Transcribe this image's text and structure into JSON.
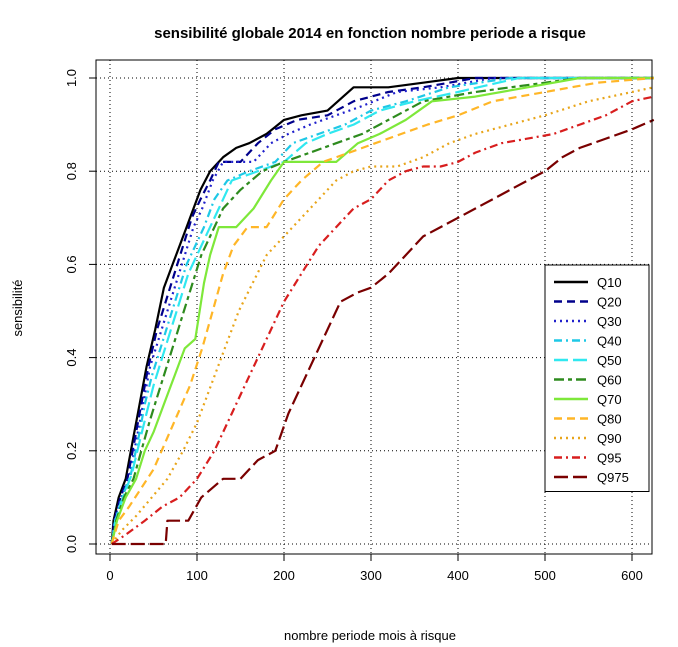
{
  "chart_data": {
    "type": "line",
    "title": "sensibilité globale 2014 en fonction nombre periode a risque",
    "xlabel": "nombre periode mois à risque",
    "ylabel": "sensibilité",
    "xlim": [
      0,
      625
    ],
    "ylim": [
      0,
      1.0
    ],
    "x_ticks": [
      0,
      100,
      200,
      300,
      400,
      500,
      600
    ],
    "y_ticks": [
      0.0,
      0.2,
      0.4,
      0.6,
      0.8,
      1.0
    ],
    "grid": true,
    "legend_position": "right",
    "series": [
      {
        "name": "Q10",
        "color": "#000000",
        "dash": "solid",
        "points": [
          [
            2,
            0
          ],
          [
            4,
            0.05
          ],
          [
            10,
            0.1
          ],
          [
            18,
            0.14
          ],
          [
            26,
            0.22
          ],
          [
            34,
            0.3
          ],
          [
            42,
            0.38
          ],
          [
            52,
            0.46
          ],
          [
            62,
            0.55
          ],
          [
            72,
            0.6
          ],
          [
            80,
            0.64
          ],
          [
            88,
            0.68
          ],
          [
            96,
            0.72
          ],
          [
            104,
            0.76
          ],
          [
            115,
            0.8
          ],
          [
            130,
            0.83
          ],
          [
            145,
            0.85
          ],
          [
            160,
            0.86
          ],
          [
            180,
            0.88
          ],
          [
            200,
            0.91
          ],
          [
            220,
            0.92
          ],
          [
            250,
            0.93
          ],
          [
            280,
            0.98
          ],
          [
            320,
            0.98
          ],
          [
            360,
            0.99
          ],
          [
            400,
            1.0
          ],
          [
            625,
            1.0
          ]
        ]
      },
      {
        "name": "Q20",
        "color": "#00008b",
        "dash": "dashed",
        "points": [
          [
            2,
            0
          ],
          [
            5,
            0.05
          ],
          [
            12,
            0.1
          ],
          [
            20,
            0.14
          ],
          [
            28,
            0.22
          ],
          [
            36,
            0.3
          ],
          [
            44,
            0.38
          ],
          [
            54,
            0.46
          ],
          [
            64,
            0.52
          ],
          [
            74,
            0.58
          ],
          [
            84,
            0.64
          ],
          [
            94,
            0.7
          ],
          [
            104,
            0.74
          ],
          [
            115,
            0.78
          ],
          [
            125,
            0.82
          ],
          [
            150,
            0.82
          ],
          [
            170,
            0.86
          ],
          [
            190,
            0.89
          ],
          [
            215,
            0.91
          ],
          [
            250,
            0.92
          ],
          [
            280,
            0.95
          ],
          [
            320,
            0.97
          ],
          [
            360,
            0.98
          ],
          [
            420,
            1.0
          ],
          [
            625,
            1.0
          ]
        ]
      },
      {
        "name": "Q30",
        "color": "#2020cc",
        "dash": "dotted",
        "points": [
          [
            2,
            0
          ],
          [
            5,
            0.05
          ],
          [
            13,
            0.1
          ],
          [
            22,
            0.14
          ],
          [
            30,
            0.22
          ],
          [
            38,
            0.3
          ],
          [
            46,
            0.38
          ],
          [
            56,
            0.44
          ],
          [
            66,
            0.5
          ],
          [
            76,
            0.56
          ],
          [
            86,
            0.62
          ],
          [
            96,
            0.68
          ],
          [
            106,
            0.72
          ],
          [
            118,
            0.78
          ],
          [
            130,
            0.82
          ],
          [
            165,
            0.82
          ],
          [
            185,
            0.86
          ],
          [
            205,
            0.88
          ],
          [
            230,
            0.9
          ],
          [
            260,
            0.92
          ],
          [
            290,
            0.94
          ],
          [
            330,
            0.97
          ],
          [
            380,
            0.98
          ],
          [
            440,
            1.0
          ],
          [
            625,
            1.0
          ]
        ]
      },
      {
        "name": "Q40",
        "color": "#1ec8e6",
        "dash": "dashdot",
        "points": [
          [
            2,
            0
          ],
          [
            6,
            0.05
          ],
          [
            14,
            0.1
          ],
          [
            24,
            0.15
          ],
          [
            32,
            0.22
          ],
          [
            40,
            0.3
          ],
          [
            48,
            0.36
          ],
          [
            58,
            0.42
          ],
          [
            68,
            0.48
          ],
          [
            78,
            0.54
          ],
          [
            88,
            0.6
          ],
          [
            98,
            0.64
          ],
          [
            108,
            0.68
          ],
          [
            120,
            0.74
          ],
          [
            135,
            0.78
          ],
          [
            160,
            0.8
          ],
          [
            190,
            0.82
          ],
          [
            210,
            0.86
          ],
          [
            240,
            0.88
          ],
          [
            270,
            0.9
          ],
          [
            300,
            0.93
          ],
          [
            340,
            0.95
          ],
          [
            390,
            0.98
          ],
          [
            460,
            1.0
          ],
          [
            625,
            1.0
          ]
        ]
      },
      {
        "name": "Q50",
        "color": "#30e8f0",
        "dash": "longdash",
        "points": [
          [
            2,
            0
          ],
          [
            6,
            0.05
          ],
          [
            15,
            0.1
          ],
          [
            25,
            0.15
          ],
          [
            34,
            0.22
          ],
          [
            42,
            0.28
          ],
          [
            50,
            0.34
          ],
          [
            60,
            0.4
          ],
          [
            70,
            0.46
          ],
          [
            80,
            0.52
          ],
          [
            90,
            0.58
          ],
          [
            100,
            0.62
          ],
          [
            110,
            0.66
          ],
          [
            125,
            0.72
          ],
          [
            140,
            0.78
          ],
          [
            170,
            0.8
          ],
          [
            200,
            0.82
          ],
          [
            225,
            0.86
          ],
          [
            250,
            0.88
          ],
          [
            280,
            0.9
          ],
          [
            310,
            0.93
          ],
          [
            350,
            0.95
          ],
          [
            400,
            0.97
          ],
          [
            470,
            1.0
          ],
          [
            625,
            1.0
          ]
        ]
      },
      {
        "name": "Q60",
        "color": "#2e8b1e",
        "dash": "twodash",
        "points": [
          [
            2,
            0
          ],
          [
            7,
            0.05
          ],
          [
            16,
            0.1
          ],
          [
            27,
            0.14
          ],
          [
            36,
            0.2
          ],
          [
            45,
            0.26
          ],
          [
            55,
            0.32
          ],
          [
            65,
            0.38
          ],
          [
            75,
            0.44
          ],
          [
            85,
            0.5
          ],
          [
            95,
            0.56
          ],
          [
            105,
            0.62
          ],
          [
            115,
            0.66
          ],
          [
            130,
            0.72
          ],
          [
            150,
            0.76
          ],
          [
            175,
            0.8
          ],
          [
            200,
            0.82
          ],
          [
            230,
            0.84
          ],
          [
            260,
            0.86
          ],
          [
            290,
            0.88
          ],
          [
            320,
            0.91
          ],
          [
            360,
            0.95
          ],
          [
            420,
            0.97
          ],
          [
            500,
            0.99
          ],
          [
            540,
            1.0
          ],
          [
            625,
            1.0
          ]
        ]
      },
      {
        "name": "Q70",
        "color": "#7ee83a",
        "dash": "solid",
        "points": [
          [
            2,
            0
          ],
          [
            8,
            0.05
          ],
          [
            18,
            0.1
          ],
          [
            30,
            0.14
          ],
          [
            40,
            0.2
          ],
          [
            50,
            0.24
          ],
          [
            62,
            0.3
          ],
          [
            74,
            0.36
          ],
          [
            86,
            0.42
          ],
          [
            98,
            0.44
          ],
          [
            108,
            0.56
          ],
          [
            115,
            0.62
          ],
          [
            125,
            0.68
          ],
          [
            145,
            0.68
          ],
          [
            165,
            0.72
          ],
          [
            185,
            0.78
          ],
          [
            200,
            0.82
          ],
          [
            260,
            0.82
          ],
          [
            285,
            0.86
          ],
          [
            310,
            0.88
          ],
          [
            340,
            0.91
          ],
          [
            370,
            0.95
          ],
          [
            420,
            0.96
          ],
          [
            480,
            0.98
          ],
          [
            540,
            1.0
          ],
          [
            625,
            1.0
          ]
        ]
      },
      {
        "name": "Q80",
        "color": "#ffb627",
        "dash": "dashed",
        "points": [
          [
            2,
            0
          ],
          [
            10,
            0.05
          ],
          [
            22,
            0.08
          ],
          [
            36,
            0.12
          ],
          [
            50,
            0.16
          ],
          [
            64,
            0.22
          ],
          [
            78,
            0.28
          ],
          [
            92,
            0.34
          ],
          [
            106,
            0.42
          ],
          [
            118,
            0.5
          ],
          [
            130,
            0.58
          ],
          [
            142,
            0.64
          ],
          [
            158,
            0.68
          ],
          [
            180,
            0.68
          ],
          [
            200,
            0.74
          ],
          [
            220,
            0.78
          ],
          [
            245,
            0.82
          ],
          [
            275,
            0.84
          ],
          [
            305,
            0.86
          ],
          [
            335,
            0.88
          ],
          [
            365,
            0.9
          ],
          [
            400,
            0.92
          ],
          [
            440,
            0.95
          ],
          [
            500,
            0.97
          ],
          [
            560,
            0.99
          ],
          [
            625,
            1.0
          ]
        ]
      },
      {
        "name": "Q90",
        "color": "#e8a51a",
        "dash": "dotted",
        "points": [
          [
            2,
            0
          ],
          [
            14,
            0.03
          ],
          [
            30,
            0.06
          ],
          [
            48,
            0.1
          ],
          [
            66,
            0.14
          ],
          [
            84,
            0.2
          ],
          [
            100,
            0.26
          ],
          [
            116,
            0.34
          ],
          [
            132,
            0.42
          ],
          [
            148,
            0.5
          ],
          [
            164,
            0.56
          ],
          [
            180,
            0.62
          ],
          [
            200,
            0.66
          ],
          [
            220,
            0.7
          ],
          [
            240,
            0.74
          ],
          [
            260,
            0.78
          ],
          [
            280,
            0.8
          ],
          [
            300,
            0.81
          ],
          [
            330,
            0.81
          ],
          [
            360,
            0.83
          ],
          [
            390,
            0.86
          ],
          [
            420,
            0.88
          ],
          [
            460,
            0.9
          ],
          [
            500,
            0.92
          ],
          [
            550,
            0.95
          ],
          [
            600,
            0.97
          ],
          [
            625,
            0.98
          ]
        ]
      },
      {
        "name": "Q95",
        "color": "#d81e1e",
        "dash": "dashdot",
        "points": [
          [
            2,
            0
          ],
          [
            18,
            0.02
          ],
          [
            40,
            0.05
          ],
          [
            60,
            0.08
          ],
          [
            80,
            0.1
          ],
          [
            100,
            0.14
          ],
          [
            120,
            0.2
          ],
          [
            140,
            0.28
          ],
          [
            160,
            0.36
          ],
          [
            180,
            0.44
          ],
          [
            200,
            0.52
          ],
          [
            220,
            0.58
          ],
          [
            240,
            0.64
          ],
          [
            260,
            0.68
          ],
          [
            280,
            0.72
          ],
          [
            300,
            0.74
          ],
          [
            320,
            0.78
          ],
          [
            340,
            0.8
          ],
          [
            360,
            0.81
          ],
          [
            380,
            0.81
          ],
          [
            400,
            0.82
          ],
          [
            420,
            0.84
          ],
          [
            450,
            0.86
          ],
          [
            480,
            0.87
          ],
          [
            510,
            0.88
          ],
          [
            540,
            0.9
          ],
          [
            570,
            0.92
          ],
          [
            600,
            0.95
          ],
          [
            625,
            0.96
          ]
        ]
      },
      {
        "name": "Q975",
        "color": "#7a0000",
        "dash": "longdash",
        "points": [
          [
            2,
            0
          ],
          [
            30,
            0
          ],
          [
            64,
            0
          ],
          [
            66,
            0.05
          ],
          [
            90,
            0.05
          ],
          [
            105,
            0.1
          ],
          [
            130,
            0.14
          ],
          [
            150,
            0.14
          ],
          [
            170,
            0.18
          ],
          [
            190,
            0.2
          ],
          [
            205,
            0.28
          ],
          [
            225,
            0.36
          ],
          [
            245,
            0.44
          ],
          [
            265,
            0.52
          ],
          [
            285,
            0.54
          ],
          [
            300,
            0.55
          ],
          [
            320,
            0.58
          ],
          [
            340,
            0.62
          ],
          [
            360,
            0.66
          ],
          [
            380,
            0.68
          ],
          [
            400,
            0.7
          ],
          [
            420,
            0.72
          ],
          [
            440,
            0.74
          ],
          [
            460,
            0.76
          ],
          [
            480,
            0.78
          ],
          [
            500,
            0.8
          ],
          [
            520,
            0.83
          ],
          [
            540,
            0.85
          ],
          [
            570,
            0.87
          ],
          [
            600,
            0.89
          ],
          [
            625,
            0.91
          ]
        ]
      }
    ]
  }
}
